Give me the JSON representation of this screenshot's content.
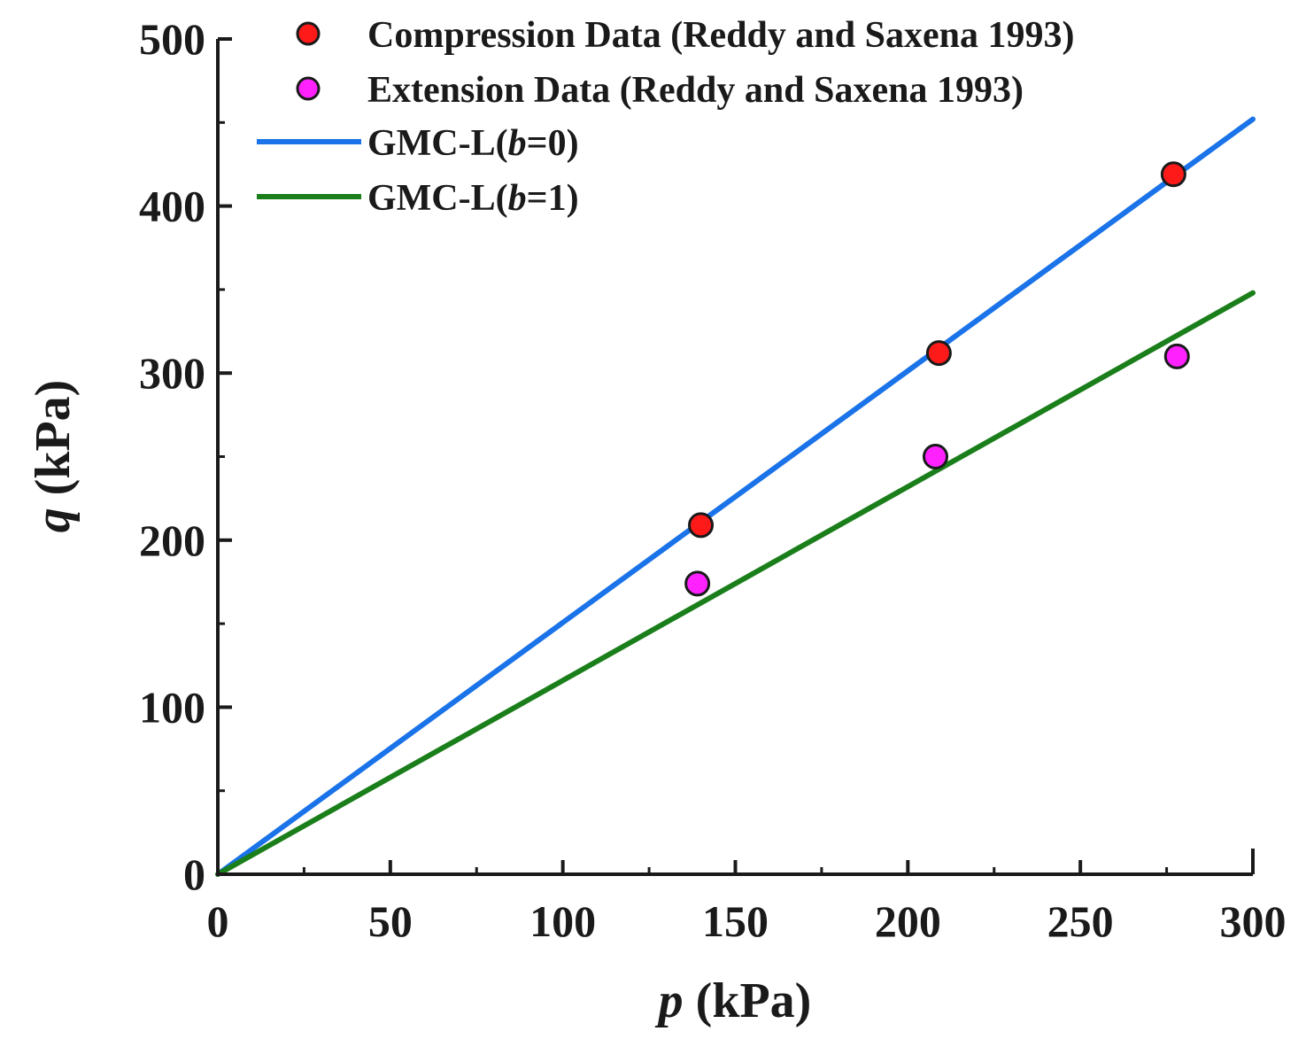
{
  "chart_data": {
    "type": "scatter",
    "title": "",
    "xlabel": {
      "var": "p",
      "unit": " (kPa)"
    },
    "ylabel": {
      "var": "q",
      "unit": " (kPa)"
    },
    "xlim": [
      0,
      300
    ],
    "ylim": [
      0,
      500
    ],
    "xticks": [
      "0",
      "50",
      "100",
      "150",
      "200",
      "250",
      "300"
    ],
    "yticks": [
      "0",
      "100",
      "200",
      "300",
      "400",
      "500"
    ],
    "grid": false,
    "legend_position": "top-left",
    "series": [
      {
        "name": "Compression Data (Reddy and Saxena 1993)",
        "kind": "scatter",
        "color": "#ff1a1a",
        "x": [
          140,
          209,
          277
        ],
        "y": [
          209,
          312,
          419
        ]
      },
      {
        "name": "Extension Data (Reddy and Saxena 1993)",
        "kind": "scatter",
        "color": "#ff22ff",
        "x": [
          139,
          208,
          278
        ],
        "y": [
          174,
          250,
          310
        ]
      },
      {
        "name_prefix": "GMC-L(",
        "name_var": "b",
        "name_suffix": "=0)",
        "kind": "line",
        "color": "#1a73e8",
        "x": [
          0,
          300
        ],
        "y": [
          0,
          452
        ]
      },
      {
        "name_prefix": "GMC-L(",
        "name_var": "b",
        "name_suffix": "=1)",
        "kind": "line",
        "color": "#1a7f1a",
        "x": [
          0,
          300
        ],
        "y": [
          0,
          348
        ]
      }
    ]
  }
}
